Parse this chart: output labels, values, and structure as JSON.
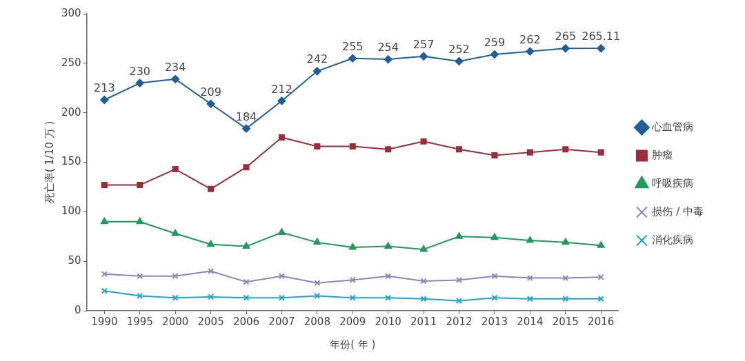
{
  "chart_data": {
    "type": "line",
    "xlabel": "年份( 年 )",
    "ylabel": "死亡率( 1/10 万 )",
    "categories": [
      "1990",
      "1995",
      "2000",
      "2005",
      "2006",
      "2007",
      "2008",
      "2009",
      "2010",
      "2011",
      "2012",
      "2013",
      "2014",
      "2015",
      "2016"
    ],
    "ylim": [
      0,
      300
    ],
    "yticks": [
      0,
      50,
      100,
      150,
      200,
      250,
      300
    ],
    "grid": false,
    "legend": "right",
    "series": [
      {
        "name": "心血管病",
        "color": "#1f5f96",
        "marker": "diamond",
        "values": [
          213,
          230,
          234,
          209,
          184,
          212,
          242,
          255,
          254,
          257,
          252,
          259,
          262,
          265,
          265.11
        ],
        "value_labels": [
          "213",
          "230",
          "234",
          "209",
          "184",
          "212",
          "242",
          "255",
          "254",
          "257",
          "252",
          "259",
          "262",
          "265",
          "265.11"
        ]
      },
      {
        "name": "肿瘤",
        "color": "#9b2d3a",
        "marker": "square",
        "values": [
          127,
          127,
          143,
          123,
          145,
          175,
          166,
          166,
          163,
          171,
          163,
          157,
          160,
          163,
          160
        ]
      },
      {
        "name": "呼吸疾病",
        "color": "#1e9a5a",
        "marker": "triangle",
        "values": [
          90,
          90,
          78,
          67,
          65,
          79,
          69,
          64,
          65,
          62,
          75,
          74,
          71,
          69,
          66
        ]
      },
      {
        "name": "损伤 / 中毒",
        "color": "#8a86b8",
        "marker": "cross",
        "values": [
          37,
          35,
          35,
          40,
          29,
          35,
          28,
          31,
          35,
          30,
          31,
          35,
          33,
          33,
          34
        ]
      },
      {
        "name": "消化疾病",
        "color": "#1aa6d0",
        "marker": "cross",
        "values": [
          20,
          15,
          13,
          14,
          13,
          13,
          15,
          13,
          13,
          12,
          10,
          13,
          12,
          12,
          12
        ]
      }
    ]
  }
}
